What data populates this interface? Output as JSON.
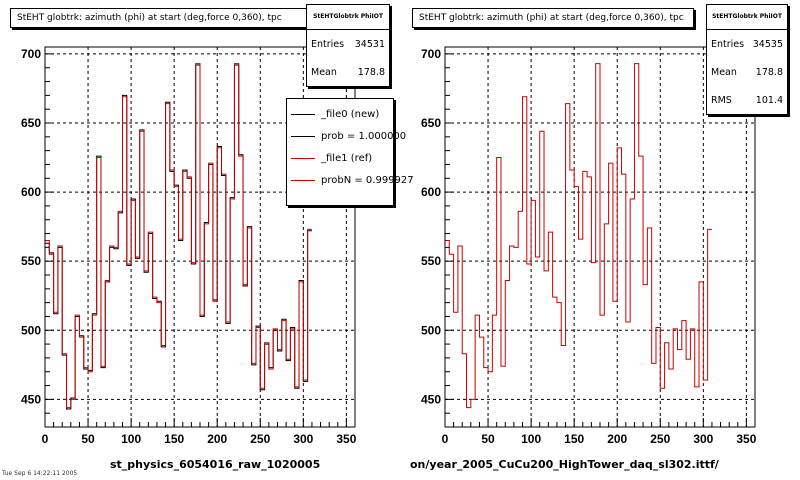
{
  "panels": [
    {
      "title": "StEHT globtrk: azimuth (phi) at start (deg,force 0,360), tpc",
      "stats": {
        "title": "StEHTGlobtrk PhiIOT",
        "rows": [
          {
            "label": "Entries",
            "value": "34531"
          },
          {
            "label": "Mean",
            "value": "178.8"
          }
        ]
      },
      "legend": [
        "_file0 (new)",
        "prob = 1.000000",
        "_file1 (ref)",
        "probN = 0.999927"
      ],
      "caption": "st_physics_6054016_raw_1020005"
    },
    {
      "title": "StEHT globtrk: azimuth (phi) at start (deg,force 0,360), tpc",
      "stats": {
        "title": "StEHTGlobtrk PhiIOT",
        "rows": [
          {
            "label": "Entries",
            "value": "34535"
          },
          {
            "label": "Mean",
            "value": "178.8"
          },
          {
            "label": "RMS",
            "value": "101.4"
          }
        ]
      },
      "caption": "on/year_2005_CuCu200_HighTower_daq_sl302.ittf/"
    }
  ],
  "footer_text": "Tue Sep 6 14:22:11 2005",
  "colors": {
    "new": "#000000",
    "ref": "#cc0000"
  },
  "chart_data": [
    {
      "type": "histogram",
      "title": "StEHT globtrk: azimuth (phi) at start (deg,force 0,360), tpc",
      "xlabel": "",
      "ylabel": "",
      "xlim": [
        0,
        360
      ],
      "ylim": [
        430,
        705
      ],
      "x_ticks": [
        0,
        50,
        100,
        150,
        200,
        250,
        300,
        350
      ],
      "y_ticks": [
        450,
        500,
        550,
        600,
        650,
        700
      ],
      "grid": true,
      "bin_width": 5,
      "series": [
        {
          "name": "_file0 (new)",
          "values": [
            563,
            556,
            512,
            560,
            482,
            443,
            451,
            510,
            496,
            472,
            471,
            512,
            626,
            473,
            535,
            560,
            559,
            585,
            670,
            547,
            595,
            552,
            645,
            542,
            570,
            523,
            521,
            488,
            665,
            615,
            605,
            565,
            616,
            610,
            548,
            692,
            510,
            578,
            620,
            522,
            633,
            612,
            505,
            596,
            692,
            627,
            532,
            575,
            475,
            503,
            457,
            490,
            473,
            500,
            485,
            508,
            478,
            502,
            458,
            536,
            463,
            572
          ]
        },
        {
          "name": "_file1 (ref)",
          "values": [
            565,
            555,
            513,
            561,
            483,
            444,
            450,
            511,
            495,
            473,
            470,
            511,
            625,
            474,
            536,
            561,
            560,
            586,
            669,
            548,
            594,
            553,
            644,
            543,
            571,
            524,
            520,
            489,
            664,
            616,
            604,
            566,
            615,
            611,
            549,
            693,
            511,
            577,
            621,
            521,
            632,
            613,
            506,
            595,
            693,
            626,
            533,
            574,
            476,
            502,
            458,
            491,
            472,
            501,
            486,
            507,
            479,
            501,
            459,
            535,
            464,
            573
          ]
        }
      ]
    },
    {
      "type": "histogram",
      "title": "StEHT globtrk: azimuth (phi) at start (deg,force 0,360), tpc",
      "xlabel": "",
      "ylabel": "",
      "xlim": [
        0,
        360
      ],
      "ylim": [
        430,
        705
      ],
      "x_ticks": [
        0,
        50,
        100,
        150,
        200,
        250,
        300,
        350
      ],
      "y_ticks": [
        450,
        500,
        550,
        600,
        650,
        700
      ],
      "grid": true,
      "bin_width": 5,
      "series": [
        {
          "values": [
            565,
            555,
            513,
            561,
            483,
            444,
            450,
            511,
            495,
            473,
            470,
            511,
            625,
            474,
            536,
            561,
            560,
            586,
            669,
            548,
            594,
            553,
            644,
            543,
            571,
            524,
            520,
            489,
            664,
            616,
            604,
            566,
            615,
            611,
            549,
            693,
            511,
            577,
            621,
            521,
            632,
            613,
            506,
            595,
            693,
            626,
            533,
            574,
            476,
            502,
            458,
            491,
            472,
            501,
            486,
            507,
            479,
            501,
            459,
            535,
            464,
            573
          ]
        }
      ]
    }
  ]
}
